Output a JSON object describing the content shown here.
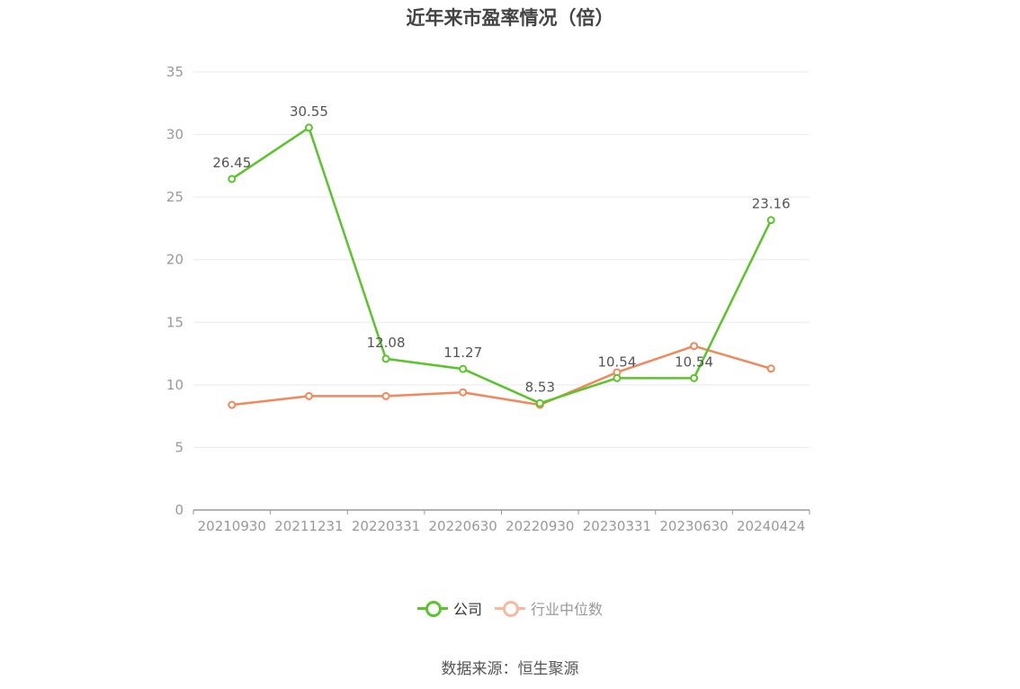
{
  "title": "近年来市盈率情况（倍）",
  "source": "数据来源：恒生聚源",
  "colors": {
    "company": "#5ac42a",
    "industry": "#f0885c",
    "axis_text": "#999999",
    "grid": "#e6e9f0",
    "label_text": "#555555"
  },
  "legend": [
    {
      "label": "公司",
      "color": "#5ac42a"
    },
    {
      "label": "行业中位数",
      "color": "#f6b9a0"
    }
  ],
  "chart_data": {
    "type": "line",
    "title": "近年来市盈率情况（倍）",
    "xlabel": "",
    "ylabel": "",
    "categories": [
      "20210930",
      "20211231",
      "20220331",
      "20220630",
      "20220930",
      "20230331",
      "20230630",
      "20240424"
    ],
    "ylim": [
      0,
      35
    ],
    "yticks": [
      0,
      5,
      10,
      15,
      20,
      25,
      30,
      35
    ],
    "grid": true,
    "legend_position": "bottom",
    "series": [
      {
        "name": "公司",
        "values": [
          26.45,
          30.55,
          12.08,
          11.27,
          8.53,
          10.54,
          10.54,
          23.16
        ],
        "labels": [
          "26.45",
          "30.55",
          "12.08",
          "11.27",
          "8.53",
          "10.54",
          "10.54",
          "23.16"
        ]
      },
      {
        "name": "行业中位数",
        "values": [
          8.4,
          9.1,
          9.1,
          9.4,
          8.4,
          11.0,
          13.1,
          11.3
        ]
      }
    ]
  }
}
